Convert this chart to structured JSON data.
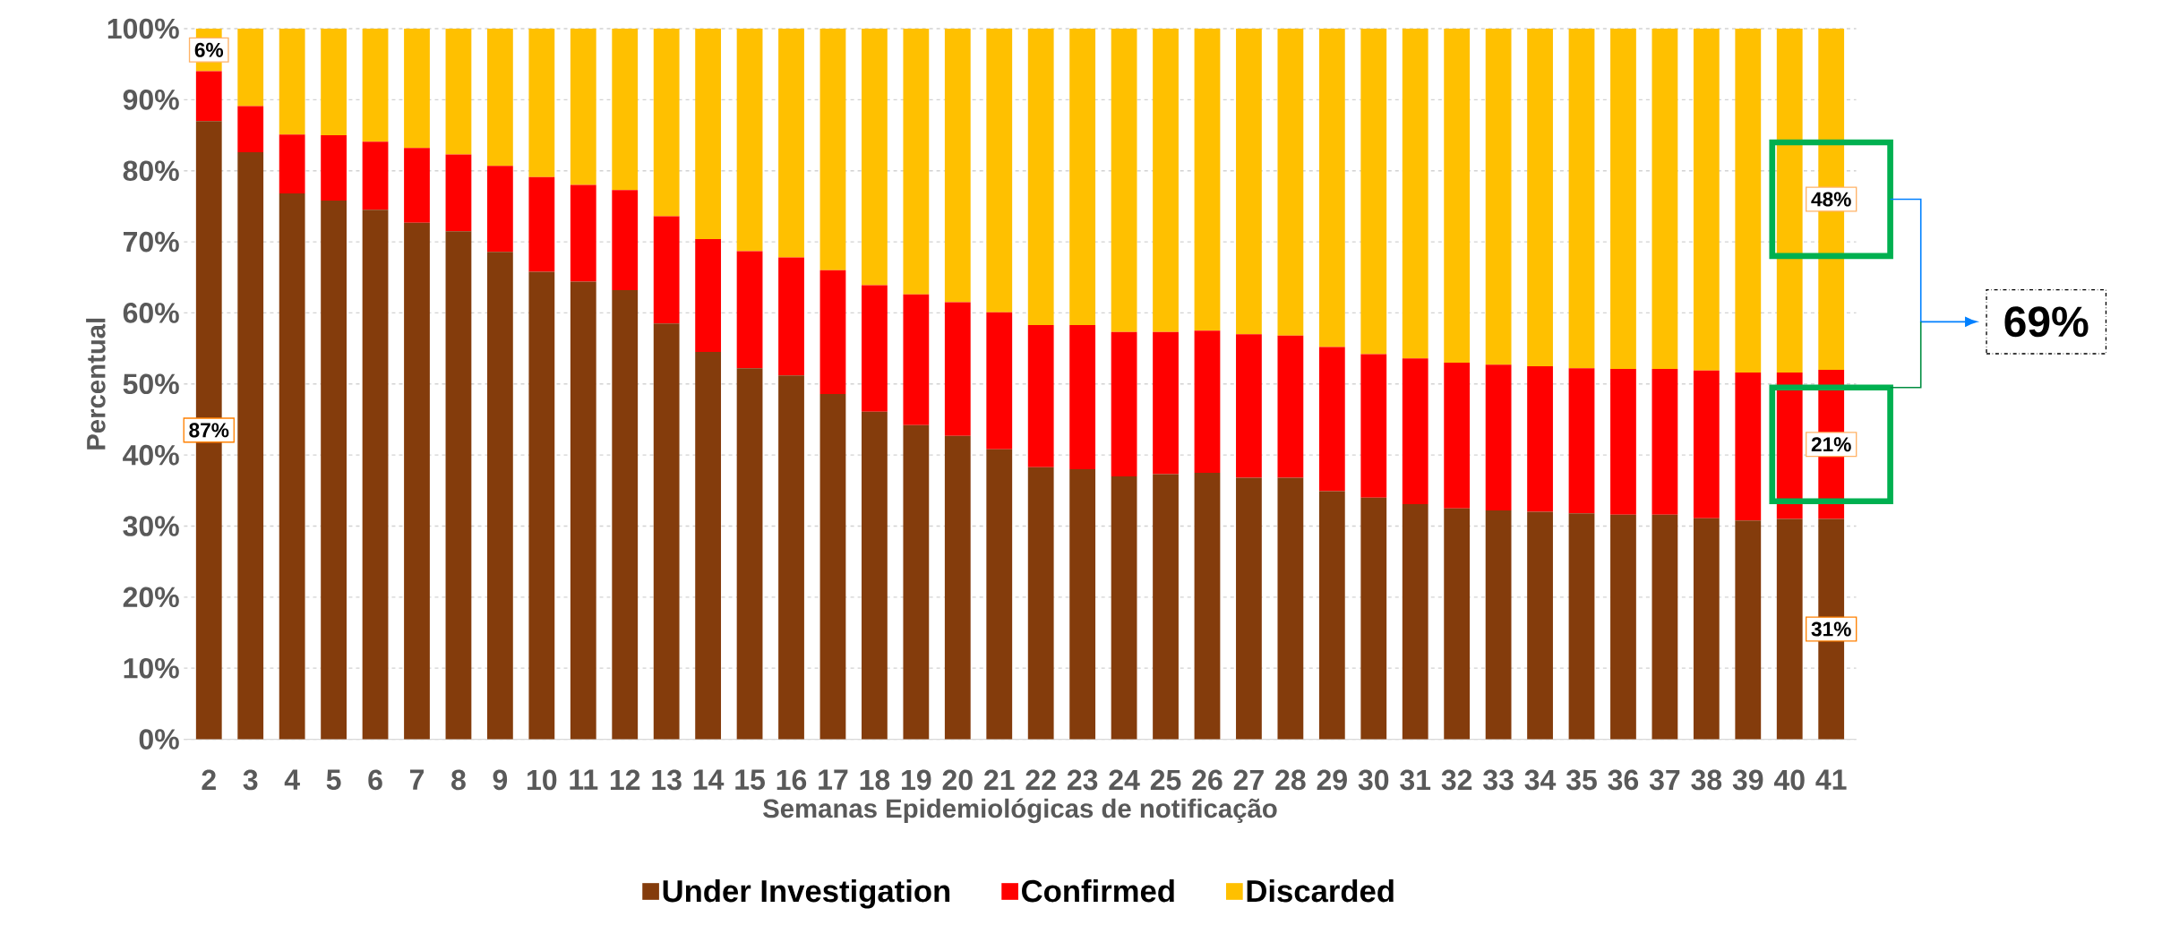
{
  "chart_data": {
    "type": "bar",
    "stacked": true,
    "xlabel": "Semanas Epidemiológicas de notificação",
    "ylabel": "Percentual",
    "categories": [
      "2",
      "3",
      "4",
      "5",
      "6",
      "7",
      "8",
      "9",
      "10",
      "11",
      "12",
      "13",
      "14",
      "15",
      "16",
      "17",
      "18",
      "19",
      "20",
      "21",
      "22",
      "23",
      "24",
      "25",
      "26",
      "27",
      "28",
      "29",
      "30",
      "31",
      "32",
      "33",
      "34",
      "35",
      "36",
      "37",
      "38",
      "39",
      "40",
      "41"
    ],
    "series": [
      {
        "name": "Under Investigation",
        "color": "#843c0c",
        "values": [
          87,
          82.6,
          76.8,
          75.8,
          74.5,
          72.7,
          71.5,
          68.6,
          65.8,
          64.4,
          63.2,
          58.5,
          54.5,
          52.2,
          51.2,
          48.6,
          46.1,
          44.2,
          42.7,
          40.8,
          38.3,
          38.0,
          37.0,
          37.3,
          37.5,
          36.8,
          36.8,
          34.9,
          34.0,
          33.1,
          32.5,
          32.2,
          32.0,
          31.8,
          31.6,
          31.6,
          31.1,
          30.8,
          31.0,
          31
        ],
        "value_labels": [
          "87%",
          null,
          null,
          null,
          null,
          null,
          null,
          null,
          null,
          null,
          null,
          null,
          null,
          null,
          null,
          null,
          null,
          null,
          null,
          null,
          null,
          null,
          null,
          null,
          null,
          null,
          null,
          null,
          null,
          null,
          null,
          null,
          null,
          null,
          null,
          null,
          null,
          null,
          null,
          "31%"
        ]
      },
      {
        "name": "Confirmed",
        "color": "#ff0000",
        "values": [
          7,
          6.5,
          8.3,
          9.2,
          9.6,
          10.5,
          10.8,
          12.1,
          13.3,
          13.6,
          14.1,
          15.1,
          15.9,
          16.5,
          16.6,
          17.4,
          17.8,
          18.4,
          18.8,
          19.3,
          20.0,
          20.3,
          20.3,
          20.0,
          20.0,
          20.2,
          20.0,
          20.3,
          20.2,
          20.5,
          20.5,
          20.5,
          20.5,
          20.4,
          20.5,
          20.5,
          20.8,
          20.8,
          20.6,
          21
        ],
        "value_labels": [
          null,
          null,
          null,
          null,
          null,
          null,
          null,
          null,
          null,
          null,
          null,
          null,
          null,
          null,
          null,
          null,
          null,
          null,
          null,
          null,
          null,
          null,
          null,
          null,
          null,
          null,
          null,
          null,
          null,
          null,
          null,
          null,
          null,
          null,
          null,
          null,
          null,
          null,
          null,
          "21%"
        ]
      },
      {
        "name": "Discarded",
        "color": "#ffc000",
        "values": [
          6,
          10.9,
          14.9,
          15.0,
          15.9,
          16.8,
          17.7,
          19.3,
          20.9,
          22.0,
          22.7,
          26.4,
          29.6,
          31.3,
          32.2,
          34.0,
          36.1,
          37.4,
          38.5,
          39.9,
          41.7,
          41.7,
          42.7,
          42.7,
          42.5,
          43.0,
          43.2,
          44.8,
          45.8,
          46.4,
          47.0,
          47.3,
          47.5,
          47.8,
          47.9,
          47.9,
          48.1,
          48.4,
          48.4,
          48
        ],
        "value_labels": [
          "6%",
          null,
          null,
          null,
          null,
          null,
          null,
          null,
          null,
          null,
          null,
          null,
          null,
          null,
          null,
          null,
          null,
          null,
          null,
          null,
          null,
          null,
          null,
          null,
          null,
          null,
          null,
          null,
          null,
          null,
          null,
          null,
          null,
          null,
          null,
          null,
          null,
          null,
          null,
          "48%"
        ]
      }
    ],
    "ylim": [
      0,
      100
    ],
    "yticks": [
      {
        "value": 0,
        "label": "0%"
      },
      {
        "value": 10,
        "label": "10%"
      },
      {
        "value": 20,
        "label": "20%"
      },
      {
        "value": 30,
        "label": "30%"
      },
      {
        "value": 40,
        "label": "40%"
      },
      {
        "value": 50,
        "label": "50%"
      },
      {
        "value": 60,
        "label": "60%"
      },
      {
        "value": 70,
        "label": "70%"
      },
      {
        "value": 80,
        "label": "80%"
      },
      {
        "value": 90,
        "label": "90%"
      },
      {
        "value": 100,
        "label": "100%"
      }
    ],
    "grid": "y",
    "legend": "bottom",
    "annotations": [
      "69%"
    ]
  }
}
